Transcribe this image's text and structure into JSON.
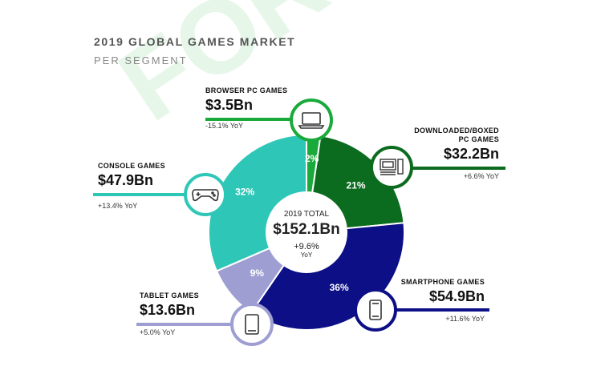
{
  "header": {
    "title": "2019 GLOBAL GAMES MARKET",
    "subtitle": "PER SEGMENT",
    "watermark": "FOR"
  },
  "center": {
    "label": "2019 TOTAL",
    "value": "$152.1Bn",
    "change": "+9.6%",
    "change_unit": "YoY"
  },
  "colors": {
    "browser": "#1aaa3c",
    "downloaded": "#0b6b1f",
    "smartphone": "#0c0f85",
    "tablet": "#9e9ed2",
    "console": "#2ec7b7"
  },
  "chart_data": {
    "type": "pie",
    "title": "2019 GLOBAL GAMES MARKET",
    "subtitle": "PER SEGMENT",
    "slices": [
      {
        "key": "browser",
        "name": "BROWSER PC GAMES",
        "value_bn": 3.5,
        "percent": 2,
        "percent_label": "2%",
        "value_label": "$3.5Bn",
        "yoy": "-15.1% YoY"
      },
      {
        "key": "downloaded",
        "name": "DOWNLOADED/BOXED PC GAMES",
        "value_bn": 32.2,
        "percent": 21,
        "percent_label": "21%",
        "value_label": "$32.2Bn",
        "yoy": "+6.6% YoY"
      },
      {
        "key": "smartphone",
        "name": "SMARTPHONE GAMES",
        "value_bn": 54.9,
        "percent": 36,
        "percent_label": "36%",
        "value_label": "$54.9Bn",
        "yoy": "+11.6% YoY"
      },
      {
        "key": "tablet",
        "name": "TABLET GAMES",
        "value_bn": 13.6,
        "percent": 9,
        "percent_label": "9%",
        "value_label": "$13.6Bn",
        "yoy": "+5.0% YoY"
      },
      {
        "key": "console",
        "name": "CONSOLE GAMES",
        "value_bn": 47.9,
        "percent": 32,
        "percent_label": "32%",
        "value_label": "$47.9Bn",
        "yoy": "+13.4% YoY"
      }
    ],
    "total_label": "2019 TOTAL",
    "total_value": "$152.1Bn",
    "total_change": "+9.6% YoY"
  },
  "segments": {
    "browser": {
      "name": "BROWSER PC GAMES",
      "value": "$3.5Bn",
      "yoy": "-15.1% YoY",
      "icon": "laptop-icon"
    },
    "downloaded": {
      "name_line1": "DOWNLOADED/BOXED",
      "name_line2": "PC GAMES",
      "value": "$32.2Bn",
      "yoy": "+6.6% YoY",
      "icon": "desktop-pc-icon"
    },
    "smartphone": {
      "name": "SMARTPHONE GAMES",
      "value": "$54.9Bn",
      "yoy": "+11.6% YoY",
      "icon": "smartphone-icon"
    },
    "tablet": {
      "name": "TABLET GAMES",
      "value": "$13.6Bn",
      "yoy": "+5.0% YoY",
      "icon": "tablet-icon"
    },
    "console": {
      "name": "CONSOLE GAMES",
      "value": "$47.9Bn",
      "yoy": "+13.4% YoY",
      "icon": "gamepad-icon"
    }
  }
}
